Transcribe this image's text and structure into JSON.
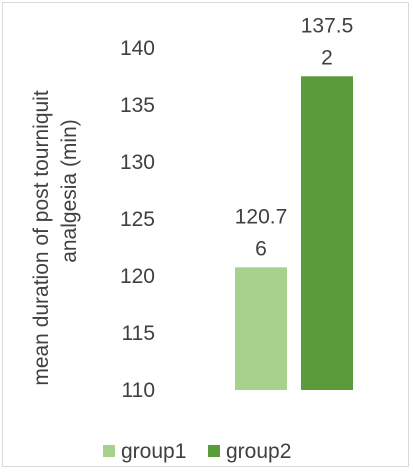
{
  "chart_data": {
    "type": "bar",
    "categories": [
      "group1",
      "group2"
    ],
    "series": [
      {
        "name": "group1",
        "values": [
          120.76,
          null
        ],
        "color": "#a9d18e",
        "data_label": [
          "120.7",
          "6"
        ]
      },
      {
        "name": "group2",
        "values": [
          null,
          137.52
        ],
        "color": "#5b9b3c",
        "data_label": [
          "137.5",
          "2"
        ]
      }
    ],
    "ylabel_lines": [
      "mean duration of post tourniquit",
      "analgesia (min)"
    ],
    "ylim": [
      110,
      140
    ],
    "yticks": [
      "110",
      "115",
      "120",
      "125",
      "130",
      "135",
      "140"
    ],
    "grid": false,
    "legend": {
      "position": "bottom",
      "entries": [
        {
          "label": "group1",
          "color": "#a9d18e"
        },
        {
          "label": "group2",
          "color": "#5b9b3c"
        }
      ]
    }
  }
}
